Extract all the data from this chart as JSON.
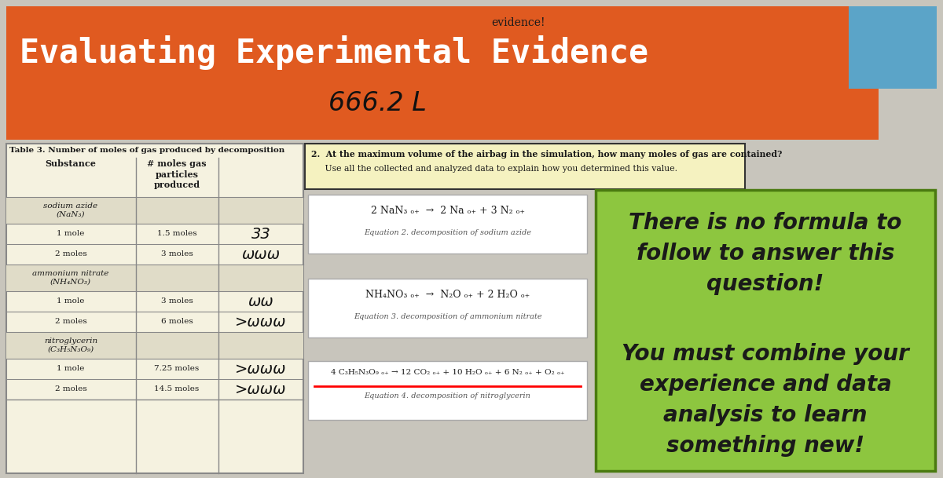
{
  "title": "Evaluating Experimental Evidence",
  "handwritten_subtitle": "666.2 L",
  "evidence_label": "evidence!",
  "bg_color": "#c8c5bc",
  "header_bg": "#e05a20",
  "header_text_color": "#ffffff",
  "blue_rect_color": "#5ba4c8",
  "table_title": "Table 3. Number of moles of gas produced by decomposition",
  "table_col1_header": "Substance",
  "table_col2_header": "# moles gas\nparticles\nproduced",
  "table_bg": "#f5f2e0",
  "table_border": "#888888",
  "question2_bg": "#f5f2c0",
  "question2_border": "#333333",
  "question2_line1": "2.  At the maximum volume of the airbag in the simulation, how many moles of gas are contained?",
  "question2_line2": "     Use all the collected and analyzed data to explain how you determined this value.",
  "green_box_bg": "#8dc63f",
  "green_box_text1": "There is no formula to\nfollow to answer this\nquestion!",
  "green_box_text2": "You must combine your\nexperience and data\nanalysis to learn\nsomething new!",
  "green_box_text_color": "#1a1a1a"
}
